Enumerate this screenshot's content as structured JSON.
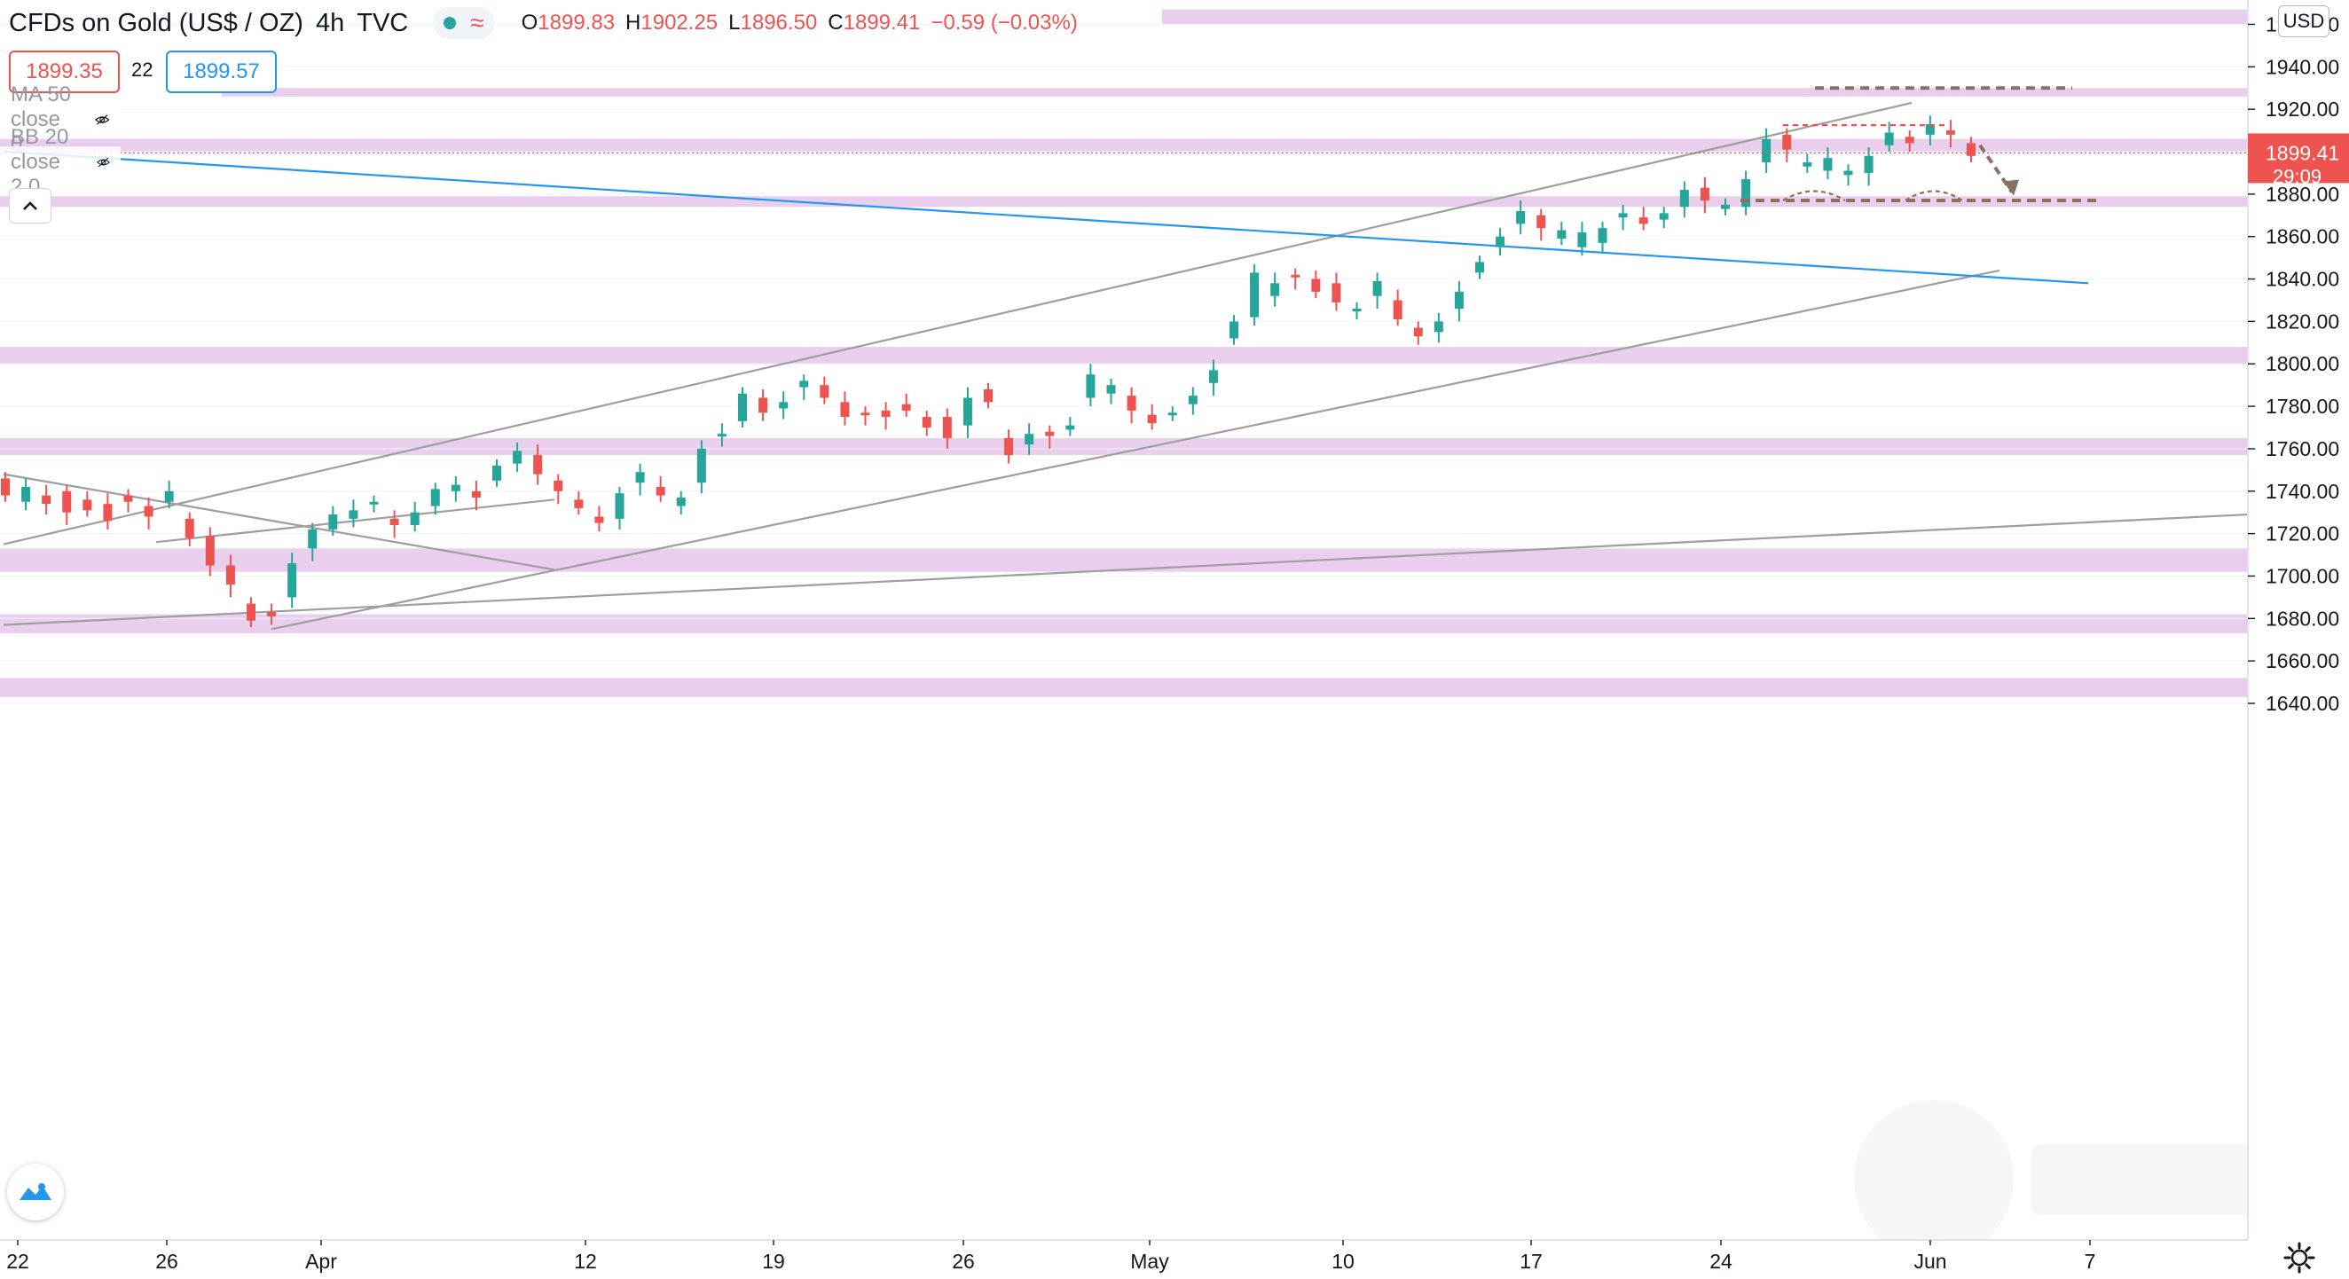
{
  "header": {
    "symbol_title": "CFDs on Gold (US$ / OZ)",
    "interval": "4h",
    "source": "TVC",
    "ohlc": {
      "open_label": "O",
      "open": "1899.83",
      "high_label": "H",
      "high": "1902.25",
      "low_label": "L",
      "low": "1896.50",
      "close_label": "C",
      "close": "1899.41",
      "change": "−0.59 (−0.03%)"
    },
    "bid": "1899.35",
    "spread": "22",
    "ask": "1899.57"
  },
  "indicators": [
    {
      "label": "MA 50 close 0",
      "icon": "eye-crossed-icon"
    },
    {
      "label": "BB 20 close 2 0",
      "icon": "eye-crossed-icon"
    }
  ],
  "price_axis": {
    "currency_button": "USD",
    "current_price": "1899.41",
    "countdown": "29:09",
    "ticks": [
      "1960.00",
      "1940.00",
      "1920.00",
      "1900.00",
      "1880.00",
      "1860.00",
      "1840.00",
      "1820.00",
      "1800.00",
      "1780.00",
      "1760.00",
      "1740.00",
      "1720.00",
      "1700.00",
      "1680.00",
      "1660.00",
      "1640.00"
    ]
  },
  "time_axis": {
    "labels": [
      "22",
      "26",
      "Apr",
      "12",
      "19",
      "26",
      "May",
      "10",
      "17",
      "24",
      "Jun",
      "7"
    ]
  },
  "colors": {
    "up": "#26a69a",
    "down": "#ef5350",
    "zone": "#e1bee7",
    "trendline": "#9e9e9e",
    "blue_line": "#2196f3",
    "dashed_brown": "#8d6e63",
    "price_label_bg": "#ef5350"
  },
  "chart_data": {
    "type": "candlestick",
    "instrument": "CFDs on Gold (US$ / OZ)",
    "timeframe": "4h",
    "y_range": [
      1631,
      1967
    ],
    "x_labels": [
      "22",
      "26",
      "Apr",
      "12",
      "19",
      "26",
      "May",
      "10",
      "17",
      "24",
      "Jun",
      "7"
    ],
    "last_price": 1899.41,
    "horizontal_zones": [
      [
        1960,
        1967
      ],
      [
        1926,
        1930
      ],
      [
        1900,
        1906
      ],
      [
        1874,
        1879
      ],
      [
        1800,
        1808
      ],
      [
        1757,
        1765
      ],
      [
        1702,
        1713
      ],
      [
        1673,
        1682
      ],
      [
        1643,
        1652
      ]
    ],
    "trendlines": [
      {
        "name": "channel-upper",
        "from": [
          "22 Mar",
          1715
        ],
        "to": [
          "27 May",
          1923
        ]
      },
      {
        "name": "channel-lower",
        "from": [
          "31 Mar",
          1675
        ],
        "to": [
          "3 Jun",
          1844
        ]
      },
      {
        "name": "long-descending",
        "from": [
          "22 Mar",
          1900
        ],
        "to": [
          "6 Jun",
          1838
        ]
      },
      {
        "name": "long-ascending",
        "from": [
          "22 Mar",
          1677
        ],
        "to": [
          "9 Jun",
          1729
        ]
      },
      {
        "name": "wedge-descending",
        "from": [
          "22 Mar",
          1748
        ],
        "to": [
          "6 Apr",
          1703
        ]
      },
      {
        "name": "wedge-ascending",
        "from": [
          "25 Mar",
          1716
        ],
        "to": [
          "6 Apr",
          1736
        ]
      }
    ],
    "annotations": [
      {
        "name": "double-top-neckline-red",
        "price": 1912.5
      },
      {
        "name": "target-above",
        "price": 1930
      },
      {
        "name": "support-dashed",
        "price": 1877
      },
      {
        "name": "projected-drop-arrow",
        "from": 1903,
        "to": 1881
      }
    ],
    "candles_path": [
      [
        1746,
        1738
      ],
      [
        1735,
        1742
      ],
      [
        1738,
        1734
      ],
      [
        1740,
        1730
      ],
      [
        1736,
        1731
      ],
      [
        1734,
        1726
      ],
      [
        1738,
        1735
      ],
      [
        1733,
        1728
      ],
      [
        1735,
        1740
      ],
      [
        1727,
        1718
      ],
      [
        1719,
        1705
      ],
      [
        1705,
        1696
      ],
      [
        1687,
        1679
      ],
      [
        1683,
        1681
      ],
      [
        1690,
        1706
      ],
      [
        1713,
        1722
      ],
      [
        1722,
        1729
      ],
      [
        1727,
        1731
      ],
      [
        1735,
        1735
      ],
      [
        1727,
        1724
      ],
      [
        1724,
        1730
      ],
      [
        1733,
        1741
      ],
      [
        1740,
        1743
      ],
      [
        1740,
        1737
      ],
      [
        1745,
        1752
      ],
      [
        1753,
        1759
      ],
      [
        1757,
        1748
      ],
      [
        1745,
        1740
      ],
      [
        1736,
        1732
      ],
      [
        1728,
        1725
      ],
      [
        1727,
        1739
      ],
      [
        1744,
        1749
      ],
      [
        1742,
        1738
      ],
      [
        1733,
        1737
      ],
      [
        1744,
        1760
      ],
      [
        1767,
        1767
      ],
      [
        1773,
        1786
      ],
      [
        1784,
        1777
      ],
      [
        1779,
        1782
      ],
      [
        1789,
        1792
      ],
      [
        1790,
        1784
      ],
      [
        1782,
        1775
      ],
      [
        1777,
        1776
      ],
      [
        1778,
        1775
      ],
      [
        1781,
        1778
      ],
      [
        1775,
        1770
      ],
      [
        1775,
        1765
      ],
      [
        1771,
        1784
      ],
      [
        1788,
        1782
      ],
      [
        1765,
        1757
      ],
      [
        1762,
        1767
      ],
      [
        1768,
        1766
      ],
      [
        1769,
        1771
      ],
      [
        1784,
        1795
      ],
      [
        1786,
        1790
      ],
      [
        1785,
        1778
      ],
      [
        1776,
        1772
      ],
      [
        1777,
        1777
      ],
      [
        1781,
        1785
      ],
      [
        1791,
        1797
      ],
      [
        1812,
        1820
      ],
      [
        1822,
        1843
      ],
      [
        1832,
        1838
      ],
      [
        1842,
        1841
      ],
      [
        1840,
        1834
      ],
      [
        1838,
        1829
      ],
      [
        1826,
        1826
      ],
      [
        1832,
        1839
      ],
      [
        1830,
        1821
      ],
      [
        1817,
        1813
      ],
      [
        1815,
        1820
      ],
      [
        1826,
        1834
      ],
      [
        1843,
        1848
      ],
      [
        1855,
        1860
      ],
      [
        1866,
        1872
      ],
      [
        1870,
        1864
      ],
      [
        1859,
        1863
      ],
      [
        1855,
        1862
      ],
      [
        1857,
        1864
      ],
      [
        1869,
        1871
      ],
      [
        1869,
        1866
      ],
      [
        1868,
        1871
      ],
      [
        1874,
        1882
      ],
      [
        1883,
        1877
      ],
      [
        1873,
        1875
      ],
      [
        1874,
        1887
      ],
      [
        1895,
        1906
      ],
      [
        1908,
        1901
      ],
      [
        1893,
        1895
      ],
      [
        1891,
        1897
      ],
      [
        1889,
        1891
      ],
      [
        1890,
        1898
      ],
      [
        1903,
        1909
      ],
      [
        1907,
        1904
      ],
      [
        1908,
        1913
      ],
      [
        1910,
        1908
      ],
      [
        1904,
        1898
      ]
    ]
  }
}
